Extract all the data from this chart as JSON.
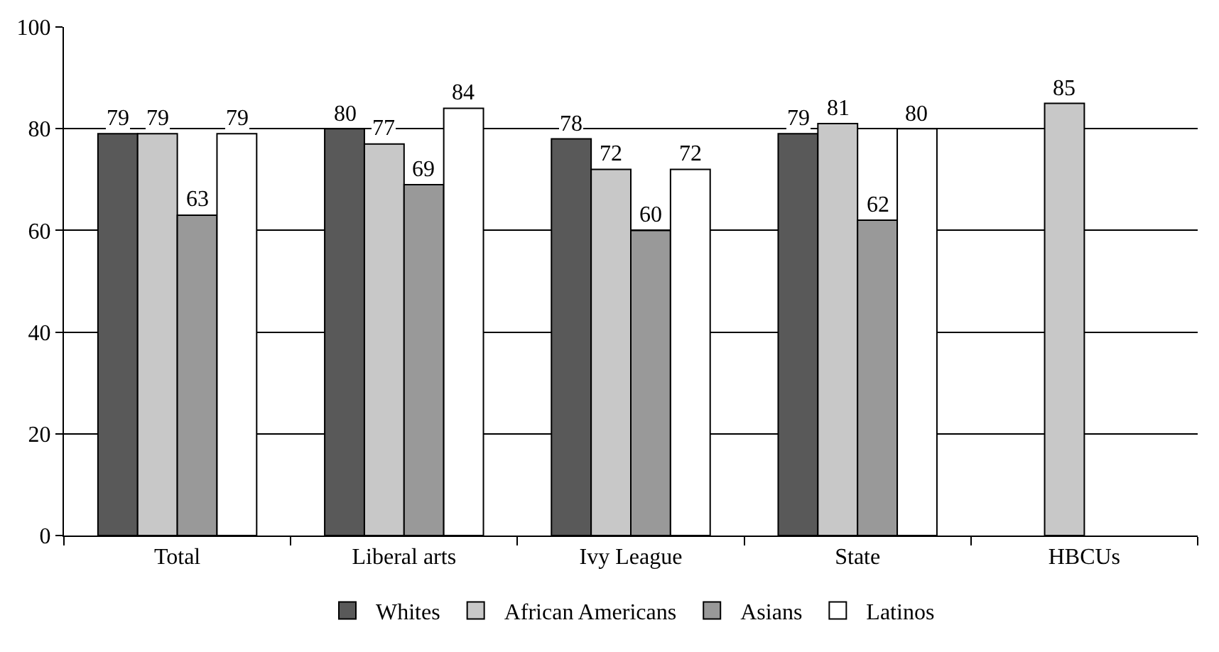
{
  "chart_data": {
    "type": "bar",
    "categories": [
      "Total",
      "Liberal arts",
      "Ivy League",
      "State",
      "HBCUs"
    ],
    "series": [
      {
        "name": "Whites",
        "color": "#595959",
        "values": [
          79,
          80,
          78,
          79,
          null
        ]
      },
      {
        "name": "African Americans",
        "color": "#c8c8c8",
        "values": [
          79,
          77,
          72,
          81,
          85
        ]
      },
      {
        "name": "Asians",
        "color": "#999999",
        "values": [
          63,
          69,
          60,
          62,
          null
        ]
      },
      {
        "name": "Latinos",
        "color": "#ffffff",
        "values": [
          79,
          84,
          72,
          80,
          null
        ]
      }
    ],
    "ylim": [
      0,
      100
    ],
    "yticks": [
      0,
      20,
      40,
      60,
      80,
      100
    ],
    "grid": "y",
    "legend": "bottom",
    "data_labels": true
  }
}
